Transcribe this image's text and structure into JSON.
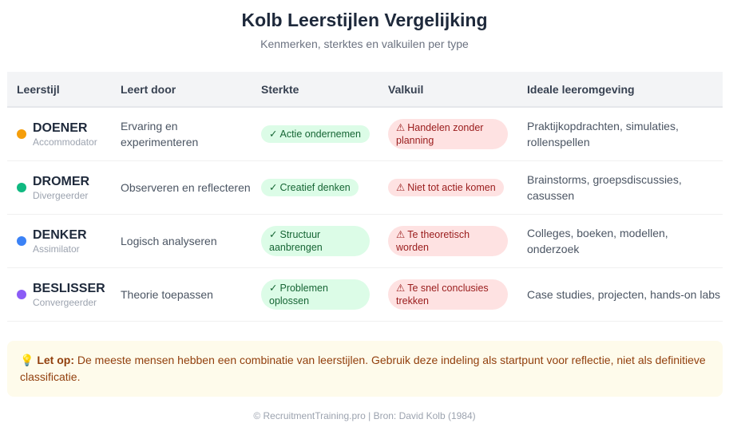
{
  "header": {
    "title": "Kolb Leerstijlen Vergelijking",
    "subtitle": "Kenmerken, sterktes en valkuilen per type"
  },
  "table": {
    "columns": [
      "Leerstijl",
      "Leert door",
      "Sterkte",
      "Valkuil",
      "Ideale leeromgeving"
    ],
    "rows": [
      {
        "name": "DOENER",
        "alias": "Accommodator",
        "color": "#f59e0b",
        "learns_by": "Ervaring en experimenteren",
        "strength_icon": "✓",
        "strength": "Actie ondernemen",
        "pitfall_icon": "⚠",
        "pitfall": "Handelen zonder planning",
        "environment": "Praktijkopdrachten, simulaties, rollenspellen"
      },
      {
        "name": "DROMER",
        "alias": "Divergeerder",
        "color": "#10b981",
        "learns_by": "Observeren en reflecteren",
        "strength_icon": "✓",
        "strength": "Creatief denken",
        "pitfall_icon": "⚠",
        "pitfall": "Niet tot actie komen",
        "environment": "Brainstorms, groepsdiscussies, casussen"
      },
      {
        "name": "DENKER",
        "alias": "Assimilator",
        "color": "#3b82f6",
        "learns_by": "Logisch analyseren",
        "strength_icon": "✓",
        "strength": "Structuur aanbrengen",
        "pitfall_icon": "⚠",
        "pitfall": "Te theoretisch worden",
        "environment": "Colleges, boeken, modellen, onderzoek"
      },
      {
        "name": "BESLISSER",
        "alias": "Convergeerder",
        "color": "#8b5cf6",
        "learns_by": "Theorie toepassen",
        "strength_icon": "✓",
        "strength": "Problemen oplossen",
        "pitfall_icon": "⚠",
        "pitfall": "Te snel conclusies trekken",
        "environment": "Case studies, projecten, hands-on labs"
      }
    ]
  },
  "callout": {
    "icon": "💡",
    "label": "Let op:",
    "text": " De meeste mensen hebben een combinatie van leerstijlen. Gebruik deze indeling als startpunt voor reflectie, niet als definitieve classificatie."
  },
  "footer": {
    "text": "© RecruitmentTraining.pro | Bron: David Kolb (1984)"
  }
}
